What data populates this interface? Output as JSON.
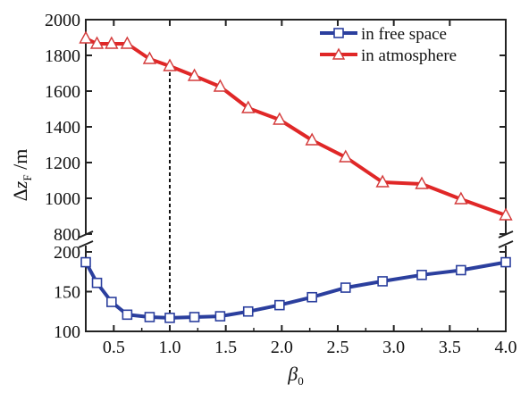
{
  "chart_data": {
    "type": "line",
    "xlabel": "β0",
    "ylabel": "ΔzF /m",
    "xlim": [
      0.25,
      4.0
    ],
    "x_ticks": [
      "0.5",
      "1.0",
      "1.5",
      "2.0",
      "2.5",
      "3.0",
      "3.5",
      "4.0"
    ],
    "y_axis_break": true,
    "y_upper_range": [
      800,
      2000
    ],
    "y_upper_ticks": [
      "800",
      "1000",
      "1200",
      "1400",
      "1600",
      "1800",
      "2000"
    ],
    "y_lower_range": [
      100,
      200
    ],
    "y_lower_ticks": [
      "100",
      "150",
      "200"
    ],
    "reference_line_x": 1.0,
    "legend_position": "top-right",
    "series": [
      {
        "name": "in free space",
        "color": "#2b3f9e",
        "marker": "square",
        "x": [
          0.25,
          0.35,
          0.48,
          0.62,
          0.82,
          1.0,
          1.22,
          1.45,
          1.7,
          1.98,
          2.27,
          2.57,
          2.9,
          3.25,
          3.6,
          4.0
        ],
        "y": [
          187,
          161,
          137,
          121,
          118,
          117,
          118,
          119,
          125,
          133,
          143,
          155,
          163,
          171,
          177,
          187
        ]
      },
      {
        "name": "in atmosphere",
        "color": "#e02727",
        "marker": "triangle",
        "x": [
          0.25,
          0.35,
          0.48,
          0.62,
          0.82,
          1.0,
          1.22,
          1.45,
          1.7,
          1.98,
          2.27,
          2.57,
          2.9,
          3.25,
          3.6,
          4.0
        ],
        "y": [
          1895,
          1865,
          1865,
          1865,
          1780,
          1740,
          1685,
          1625,
          1505,
          1440,
          1325,
          1230,
          1090,
          1080,
          995,
          905
        ]
      }
    ]
  }
}
